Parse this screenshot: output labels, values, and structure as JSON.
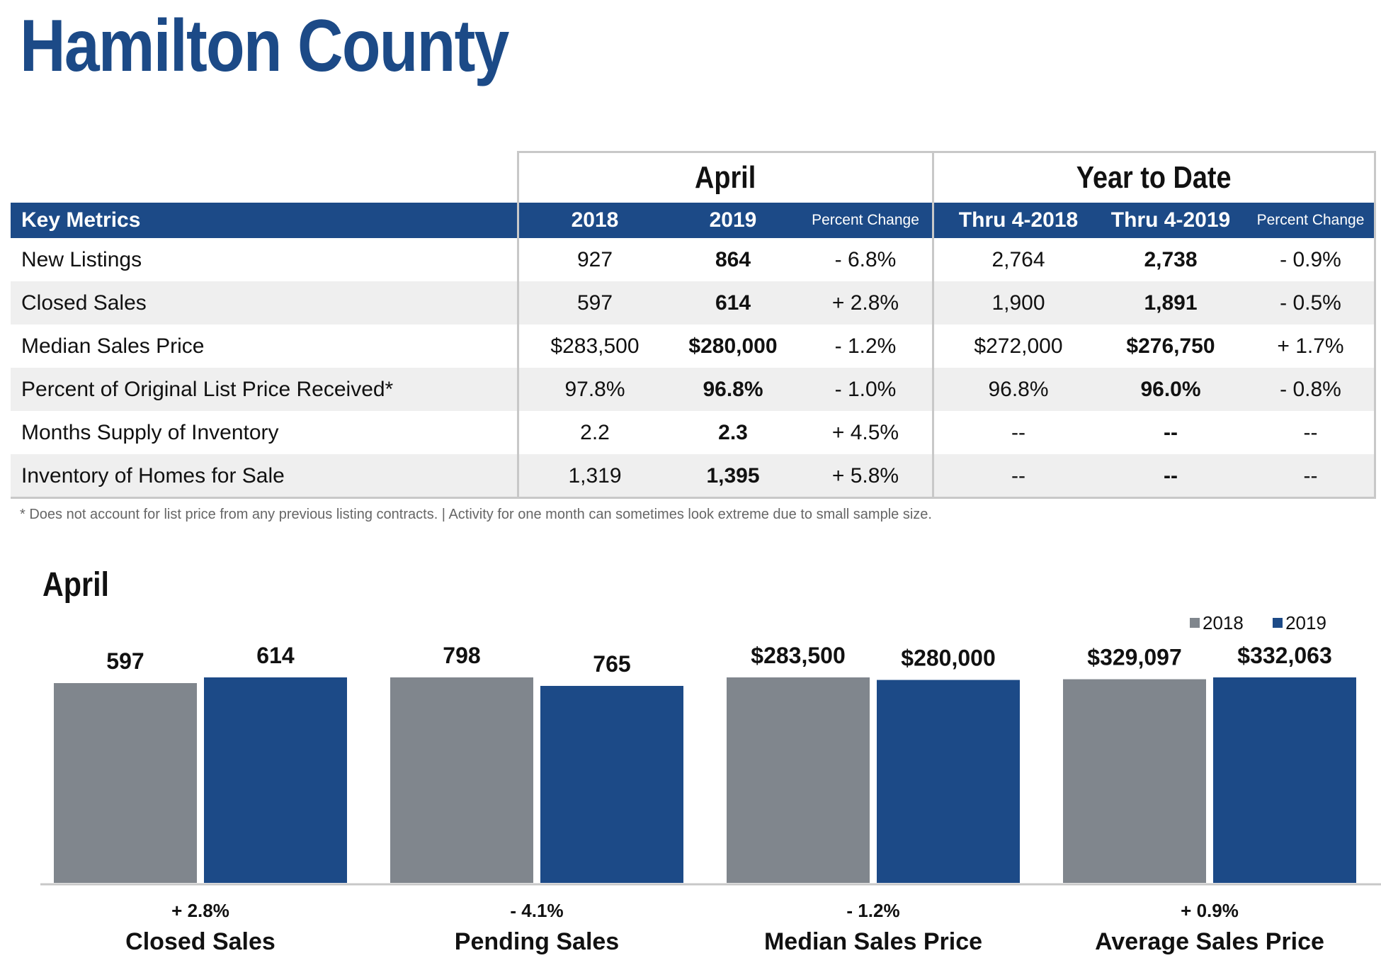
{
  "title": "Hamilton County",
  "table": {
    "group_headers": {
      "april": "April",
      "ytd": "Year to Date"
    },
    "columns": [
      "Key Metrics",
      "2018",
      "2019",
      "Percent Change",
      "Thru 4-2018",
      "Thru 4-2019",
      "Percent Change"
    ],
    "rows": [
      {
        "metric": "New Listings",
        "v2018": "927",
        "v2019": "864",
        "pct": "- 6.8%",
        "ytd2018": "2,764",
        "ytd2019": "2,738",
        "ytdpct": "- 0.9%"
      },
      {
        "metric": "Closed Sales",
        "v2018": "597",
        "v2019": "614",
        "pct": "+ 2.8%",
        "ytd2018": "1,900",
        "ytd2019": "1,891",
        "ytdpct": "- 0.5%"
      },
      {
        "metric": "Median Sales Price",
        "v2018": "$283,500",
        "v2019": "$280,000",
        "pct": "- 1.2%",
        "ytd2018": "$272,000",
        "ytd2019": "$276,750",
        "ytdpct": "+ 1.7%"
      },
      {
        "metric": "Percent of Original List Price Received*",
        "v2018": "97.8%",
        "v2019": "96.8%",
        "pct": "- 1.0%",
        "ytd2018": "96.8%",
        "ytd2019": "96.0%",
        "ytdpct": "- 0.8%"
      },
      {
        "metric": "Months Supply of Inventory",
        "v2018": "2.2",
        "v2019": "2.3",
        "pct": "+ 4.5%",
        "ytd2018": "--",
        "ytd2019": "--",
        "ytdpct": "--"
      },
      {
        "metric": "Inventory of Homes for Sale",
        "v2018": "1,319",
        "v2019": "1,395",
        "pct": "+ 5.8%",
        "ytd2018": "--",
        "ytd2019": "--",
        "ytdpct": "--"
      }
    ]
  },
  "footnote": "* Does not account for list price from any previous listing contracts.  |  Activity for one month can sometimes look extreme due to small sample size.",
  "colors": {
    "brand": "#1c4a87",
    "gray": "#80868d",
    "shade": "#efefef"
  },
  "chart_data": {
    "type": "bar",
    "title": "April",
    "legend": [
      "2018",
      "2019"
    ],
    "legend_position": "top-right",
    "groups": [
      {
        "name": "Closed Sales",
        "change": "+ 2.8%",
        "values": [
          597,
          614
        ],
        "labels": [
          "597",
          "614"
        ]
      },
      {
        "name": "Pending Sales",
        "change": "- 4.1%",
        "values": [
          798,
          765
        ],
        "labels": [
          "798",
          "765"
        ]
      },
      {
        "name": "Median Sales Price",
        "change": "- 1.2%",
        "values": [
          283500,
          280000
        ],
        "labels": [
          "$283,500",
          "$280,000"
        ]
      },
      {
        "name": "Average Sales Price",
        "change": "+ 0.9%",
        "values": [
          329097,
          332063
        ],
        "labels": [
          "$329,097",
          "$332,063"
        ]
      }
    ]
  }
}
